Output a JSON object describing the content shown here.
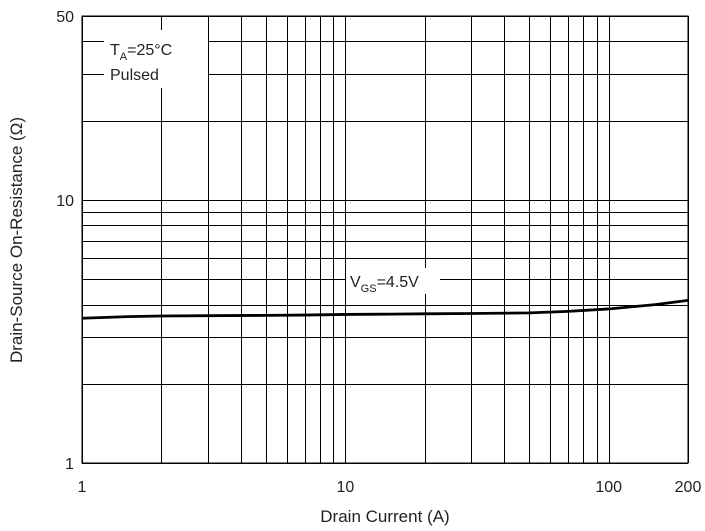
{
  "chart_data": {
    "type": "line",
    "title": "",
    "xlabel": "Drain Current (A)",
    "ylabel": "Drain-Source On-Resistance (Ω)",
    "xscale": "log",
    "yscale": "log",
    "xlim": [
      1,
      200
    ],
    "ylim": [
      1,
      50
    ],
    "grid": true,
    "x_tick_labels": [
      {
        "value": 1,
        "label": "1"
      },
      {
        "value": 10,
        "label": "10"
      },
      {
        "value": 100,
        "label": "100"
      },
      {
        "value": 200,
        "label": "200"
      }
    ],
    "y_tick_labels": [
      {
        "value": 1,
        "label": "1"
      },
      {
        "value": 10,
        "label": "10"
      },
      {
        "value": 50,
        "label": "50"
      }
    ],
    "annotations": {
      "condition_temp_main": "T",
      "condition_temp_sub": "A",
      "condition_temp_rest": "=25°C",
      "condition_mode": "Pulsed",
      "curve_label_main": "V",
      "curve_label_sub": "GS",
      "curve_label_rest": "=4.5V"
    },
    "series": [
      {
        "name": "",
        "x": [
          1,
          1.5,
          2,
          3,
          5,
          7,
          10,
          15,
          20,
          30,
          50,
          70,
          100,
          150,
          200
        ],
        "y": [
          3.55,
          3.6,
          3.62,
          3.63,
          3.64,
          3.65,
          3.67,
          3.68,
          3.69,
          3.7,
          3.72,
          3.77,
          3.85,
          4.0,
          4.15
        ]
      }
    ]
  }
}
